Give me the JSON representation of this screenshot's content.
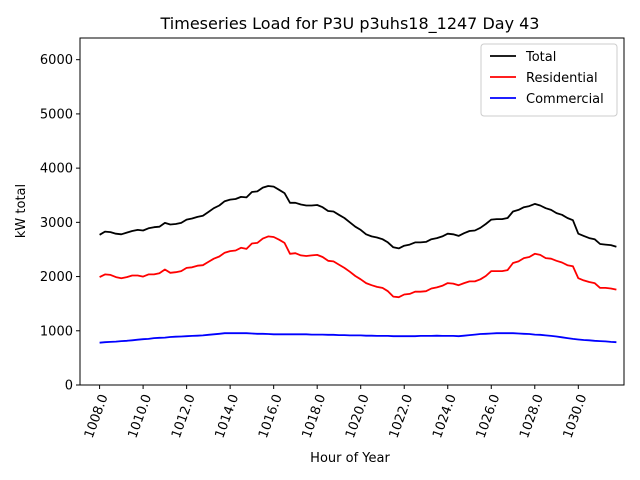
{
  "chart_data": {
    "type": "line",
    "title": "Timeseries Load for P3U p3uhs18_1247  Day 43",
    "xlabel": "Hour of Year",
    "ylabel": "kW total",
    "xlim": [
      1007.1,
      1032.1
    ],
    "ylim": [
      0,
      6400
    ],
    "x_ticks": [
      1008,
      1010,
      1012,
      1014,
      1016,
      1018,
      1020,
      1022,
      1024,
      1026,
      1028,
      1030
    ],
    "x_tick_labels": [
      "1008.0",
      "1010.0",
      "1012.0",
      "1014.0",
      "1016.0",
      "1018.0",
      "1020.0",
      "1022.0",
      "1024.0",
      "1026.0",
      "1028.0",
      "1030.0"
    ],
    "y_ticks": [
      0,
      1000,
      2000,
      3000,
      4000,
      5000,
      6000
    ],
    "y_tick_labels": [
      "0",
      "1000",
      "2000",
      "3000",
      "4000",
      "5000",
      "6000"
    ],
    "legend_position": "top-right",
    "x": [
      1008.0,
      1008.25,
      1008.5,
      1008.75,
      1009.0,
      1009.25,
      1009.5,
      1009.75,
      1010.0,
      1010.25,
      1010.5,
      1010.75,
      1011.0,
      1011.25,
      1011.5,
      1011.75,
      1012.0,
      1012.25,
      1012.5,
      1012.75,
      1013.0,
      1013.25,
      1013.5,
      1013.75,
      1014.0,
      1014.25,
      1014.5,
      1014.75,
      1015.0,
      1015.25,
      1015.5,
      1015.75,
      1016.0,
      1016.25,
      1016.5,
      1016.75,
      1017.0,
      1017.25,
      1017.5,
      1017.75,
      1018.0,
      1018.25,
      1018.5,
      1018.75,
      1019.0,
      1019.25,
      1019.5,
      1019.75,
      1020.0,
      1020.25,
      1020.5,
      1020.75,
      1021.0,
      1021.25,
      1021.5,
      1021.75,
      1022.0,
      1022.25,
      1022.5,
      1022.75,
      1023.0,
      1023.25,
      1023.5,
      1023.75,
      1024.0,
      1024.25,
      1024.5,
      1024.75,
      1025.0,
      1025.25,
      1025.5,
      1025.75,
      1026.0,
      1026.25,
      1026.5,
      1026.75,
      1027.0,
      1027.25,
      1027.5,
      1027.75,
      1028.0,
      1028.25,
      1028.5,
      1028.75,
      1029.0,
      1029.25,
      1029.5,
      1029.75,
      1030.0,
      1030.25,
      1030.5,
      1030.75,
      1031.0,
      1031.25,
      1031.5,
      1031.75
    ],
    "series": [
      {
        "name": "Total",
        "color": "#000000",
        "values": [
          2770,
          2830,
          2820,
          2790,
          2780,
          2810,
          2840,
          2860,
          2850,
          2890,
          2910,
          2920,
          2990,
          2960,
          2970,
          2990,
          3050,
          3070,
          3100,
          3120,
          3190,
          3260,
          3310,
          3390,
          3420,
          3430,
          3470,
          3460,
          3560,
          3570,
          3640,
          3670,
          3660,
          3600,
          3540,
          3360,
          3360,
          3330,
          3310,
          3310,
          3320,
          3280,
          3210,
          3200,
          3140,
          3080,
          3000,
          2920,
          2860,
          2780,
          2740,
          2720,
          2690,
          2630,
          2540,
          2520,
          2570,
          2590,
          2630,
          2630,
          2640,
          2690,
          2710,
          2740,
          2790,
          2780,
          2750,
          2800,
          2840,
          2850,
          2900,
          2970,
          3050,
          3060,
          3060,
          3080,
          3200,
          3230,
          3280,
          3300,
          3340,
          3310,
          3260,
          3230,
          3170,
          3140,
          3080,
          3040,
          2790,
          2750,
          2710,
          2690,
          2600,
          2590,
          2580,
          2550
        ]
      },
      {
        "name": "Residential",
        "color": "#ff0000",
        "values": [
          1990,
          2040,
          2030,
          1990,
          1970,
          1990,
          2020,
          2020,
          2000,
          2040,
          2040,
          2060,
          2130,
          2070,
          2080,
          2100,
          2160,
          2170,
          2200,
          2210,
          2270,
          2330,
          2370,
          2440,
          2470,
          2480,
          2530,
          2510,
          2610,
          2620,
          2700,
          2740,
          2730,
          2680,
          2620,
          2420,
          2430,
          2390,
          2380,
          2390,
          2400,
          2360,
          2290,
          2280,
          2220,
          2160,
          2090,
          2010,
          1950,
          1880,
          1840,
          1810,
          1790,
          1730,
          1630,
          1620,
          1670,
          1680,
          1720,
          1720,
          1730,
          1780,
          1800,
          1830,
          1880,
          1870,
          1840,
          1880,
          1910,
          1910,
          1950,
          2010,
          2100,
          2100,
          2100,
          2120,
          2250,
          2280,
          2340,
          2360,
          2420,
          2400,
          2340,
          2330,
          2290,
          2260,
          2210,
          2190,
          1970,
          1930,
          1900,
          1880,
          1790,
          1790,
          1780,
          1760
        ]
      },
      {
        "name": "Commercial",
        "color": "#0000ff",
        "values": [
          780,
          790,
          795,
          800,
          810,
          815,
          825,
          835,
          845,
          850,
          865,
          870,
          875,
          885,
          890,
          895,
          900,
          905,
          910,
          915,
          925,
          935,
          945,
          955,
          955,
          955,
          955,
          955,
          950,
          945,
          945,
          940,
          935,
          935,
          935,
          935,
          935,
          935,
          935,
          930,
          930,
          930,
          925,
          925,
          920,
          920,
          915,
          915,
          915,
          910,
          910,
          905,
          905,
          905,
          900,
          900,
          900,
          900,
          900,
          905,
          905,
          905,
          910,
          905,
          905,
          905,
          900,
          910,
          920,
          930,
          940,
          945,
          950,
          955,
          955,
          955,
          955,
          950,
          945,
          940,
          930,
          925,
          915,
          905,
          895,
          880,
          865,
          850,
          840,
          830,
          825,
          815,
          810,
          805,
          795,
          790
        ]
      }
    ]
  }
}
